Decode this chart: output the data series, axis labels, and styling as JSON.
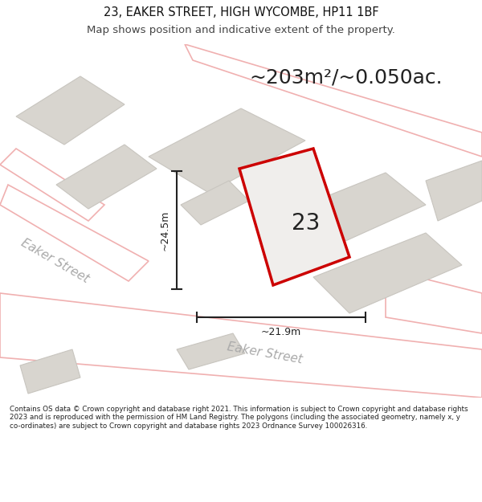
{
  "title_line1": "23, EAKER STREET, HIGH WYCOMBE, HP11 1BF",
  "title_line2": "Map shows position and indicative extent of the property.",
  "area_text": "~203m²/~0.050ac.",
  "number_label": "23",
  "dim_height": "~24.5m",
  "dim_width": "~21.9m",
  "street_label1": "Eaker Street",
  "street_label2": "Eaker Street",
  "footer_text": "Contains OS data © Crown copyright and database right 2021. This information is subject to Crown copyright and database rights 2023 and is reproduced with the permission of HM Land Registry. The polygons (including the associated geometry, namely x, y co-ordinates) are subject to Crown copyright and database rights 2023 Ordnance Survey 100026316.",
  "bg_color": "#f0eeec",
  "map_bg_color": "#f5f3f1",
  "road_fill": "#ffffff",
  "building_fill": "#d8d5cf",
  "building_edge": "#c8c5bf",
  "highlight_fill": "#f0eeec",
  "highlight_edge": "#cc0000",
  "road_line_color": "#f0b0b0",
  "dim_line_color": "#222222",
  "text_color": "#222222",
  "street_text_color": "#aaaaaa",
  "footer_bg": "#ffffff",
  "title_color": "#111111",
  "subtitle_color": "#444444"
}
